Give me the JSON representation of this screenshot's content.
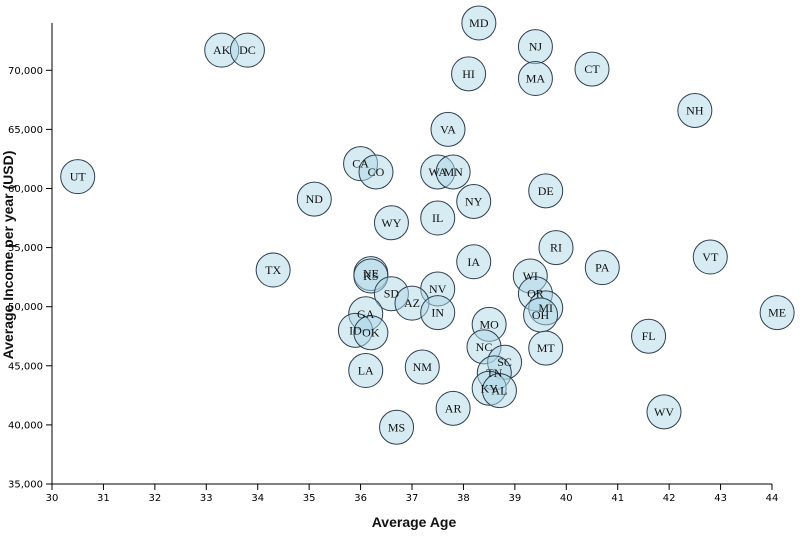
{
  "chart_data": {
    "type": "scatter",
    "title": "",
    "xlabel": "Average Age",
    "ylabel": "Average Income per year (USD)",
    "xlim": [
      30,
      44
    ],
    "ylim": [
      35000,
      74000
    ],
    "x_ticks": [
      30,
      31,
      32,
      33,
      34,
      35,
      36,
      37,
      38,
      39,
      40,
      41,
      42,
      43,
      44
    ],
    "y_ticks": [
      35000,
      40000,
      45000,
      50000,
      55000,
      60000,
      65000,
      70000
    ],
    "x_tick_labels": [
      "30",
      "31",
      "32",
      "33",
      "34",
      "35",
      "36",
      "37",
      "38",
      "39",
      "40",
      "41",
      "42",
      "43",
      "44"
    ],
    "y_tick_labels": [
      "35,000",
      "40,000",
      "45,000",
      "50,000",
      "55,000",
      "60,000",
      "65,000",
      "70,000"
    ],
    "grid": false,
    "points": [
      {
        "label": "MD",
        "x": 38.3,
        "y": 74000
      },
      {
        "label": "NJ",
        "x": 39.4,
        "y": 72000
      },
      {
        "label": "AK",
        "x": 33.3,
        "y": 71700
      },
      {
        "label": "DC",
        "x": 33.8,
        "y": 71700
      },
      {
        "label": "CT",
        "x": 40.5,
        "y": 70100
      },
      {
        "label": "HI",
        "x": 38.1,
        "y": 69700
      },
      {
        "label": "MA",
        "x": 39.4,
        "y": 69300
      },
      {
        "label": "NH",
        "x": 42.5,
        "y": 66600
      },
      {
        "label": "VA",
        "x": 37.7,
        "y": 65000
      },
      {
        "label": "CA",
        "x": 36.0,
        "y": 62100
      },
      {
        "label": "CO",
        "x": 36.3,
        "y": 61400
      },
      {
        "label": "WA",
        "x": 37.5,
        "y": 61400
      },
      {
        "label": "MN",
        "x": 37.8,
        "y": 61400
      },
      {
        "label": "UT",
        "x": 30.5,
        "y": 61000
      },
      {
        "label": "DE",
        "x": 39.6,
        "y": 59800
      },
      {
        "label": "ND",
        "x": 35.1,
        "y": 59100
      },
      {
        "label": "NY",
        "x": 38.2,
        "y": 58900
      },
      {
        "label": "IL",
        "x": 37.5,
        "y": 57500
      },
      {
        "label": "WY",
        "x": 36.6,
        "y": 57100
      },
      {
        "label": "RI",
        "x": 39.8,
        "y": 55000
      },
      {
        "label": "VT",
        "x": 42.8,
        "y": 54200
      },
      {
        "label": "IA",
        "x": 38.2,
        "y": 53800
      },
      {
        "label": "PA",
        "x": 40.7,
        "y": 53300
      },
      {
        "label": "TX",
        "x": 34.3,
        "y": 53100
      },
      {
        "label": "NE",
        "x": 36.2,
        "y": 52800
      },
      {
        "label": "KS",
        "x": 36.2,
        "y": 52600
      },
      {
        "label": "WI",
        "x": 39.3,
        "y": 52600
      },
      {
        "label": "NV",
        "x": 37.5,
        "y": 51500
      },
      {
        "label": "SD",
        "x": 36.6,
        "y": 51100
      },
      {
        "label": "OR",
        "x": 39.4,
        "y": 51100
      },
      {
        "label": "AZ",
        "x": 37.0,
        "y": 50300
      },
      {
        "label": "MI",
        "x": 39.6,
        "y": 49900
      },
      {
        "label": "ME",
        "x": 44.1,
        "y": 49500
      },
      {
        "label": "IN",
        "x": 37.5,
        "y": 49500
      },
      {
        "label": "GA",
        "x": 36.1,
        "y": 49400
      },
      {
        "label": "OH",
        "x": 39.5,
        "y": 49300
      },
      {
        "label": "MO",
        "x": 38.5,
        "y": 48500
      },
      {
        "label": "ID",
        "x": 35.9,
        "y": 48000
      },
      {
        "label": "OK",
        "x": 36.2,
        "y": 47800
      },
      {
        "label": "FL",
        "x": 41.6,
        "y": 47500
      },
      {
        "label": "NC",
        "x": 38.4,
        "y": 46600
      },
      {
        "label": "MT",
        "x": 39.6,
        "y": 46500
      },
      {
        "label": "SC",
        "x": 38.8,
        "y": 45300
      },
      {
        "label": "NM",
        "x": 37.2,
        "y": 44900
      },
      {
        "label": "LA",
        "x": 36.1,
        "y": 44600
      },
      {
        "label": "TN",
        "x": 38.6,
        "y": 44400
      },
      {
        "label": "KY",
        "x": 38.5,
        "y": 43100
      },
      {
        "label": "AL",
        "x": 38.7,
        "y": 42900
      },
      {
        "label": "AR",
        "x": 37.8,
        "y": 41400
      },
      {
        "label": "WV",
        "x": 41.9,
        "y": 41100
      },
      {
        "label": "MS",
        "x": 36.7,
        "y": 39800
      }
    ]
  }
}
